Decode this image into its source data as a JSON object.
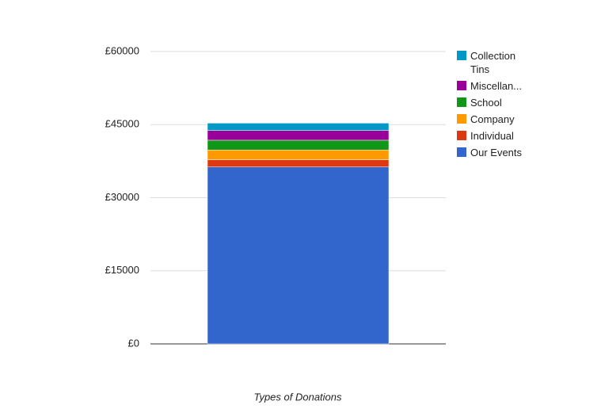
{
  "chart_data": {
    "type": "stacked_bar",
    "x_label": "Types of Donations",
    "categories": [
      null
    ],
    "series": [
      {
        "name": "Our Events",
        "color": "#3366cc",
        "values": [
          36300
        ]
      },
      {
        "name": "Individual",
        "color": "#dc3912",
        "values": [
          1500
        ]
      },
      {
        "name": "Company",
        "color": "#ff9900",
        "values": [
          2000
        ]
      },
      {
        "name": "School",
        "color": "#109618",
        "values": [
          2000
        ]
      },
      {
        "name": "Miscellan...",
        "color": "#990099",
        "values": [
          2000
        ]
      },
      {
        "name": "Collection Tins",
        "color": "#0099c6",
        "values": [
          1500
        ]
      }
    ],
    "ylim": [
      0,
      60000
    ],
    "yticks": [
      {
        "value": 0,
        "label": "£0"
      },
      {
        "value": 15000,
        "label": "£15000"
      },
      {
        "value": 30000,
        "label": "£30000"
      },
      {
        "value": 45000,
        "label": "£45000"
      },
      {
        "value": 60000,
        "label": "£60000"
      }
    ],
    "grid": true,
    "legend": "right"
  }
}
